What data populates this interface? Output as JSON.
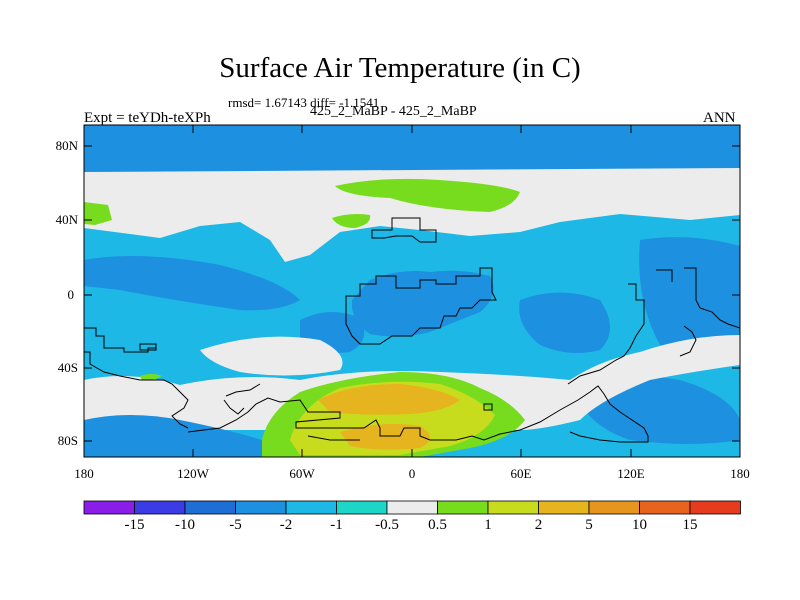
{
  "title": "Surface Air Temperature (in C)",
  "stats": "rmsd= 1.67143 diff= -1.1541",
  "left_label": "Expt = teYDh-teXPh",
  "subtitle": "425_2_MaBP - 425_2_MaBP",
  "right_label": "ANN",
  "y_ticks": [
    "80N",
    "40N",
    "0",
    "40S",
    "80S"
  ],
  "x_ticks": [
    "180",
    "120W",
    "60W",
    "0",
    "60E",
    "120E",
    "180"
  ],
  "colorbar": {
    "labels": [
      "-15",
      "-10",
      "-5",
      "-2",
      "-1",
      "-0.5",
      "0.5",
      "1",
      "2",
      "5",
      "10",
      "15"
    ],
    "colors": [
      "#8a1ee8",
      "#3c3ce6",
      "#1e6ed6",
      "#1e90e0",
      "#1eb8e6",
      "#1ed6c8",
      "#ececec",
      "#78dc1e",
      "#c8dc1e",
      "#e6b41e",
      "#e6961e",
      "#e6641e",
      "#e63c1e"
    ]
  },
  "chart_data": {
    "type": "heatmap",
    "title": "Surface Air Temperature (in C)",
    "subtitle": "425_2_MaBP - 425_2_MaBP",
    "stats": {
      "rmsd": 1.67143,
      "diff": -1.1541
    },
    "x_ticks": [
      "180",
      "120W",
      "60W",
      "0",
      "60E",
      "120E",
      "180"
    ],
    "y_ticks": [
      "80N",
      "40N",
      "0",
      "40S",
      "80S"
    ],
    "xlim": [
      -180,
      180
    ],
    "ylim": [
      -90,
      90
    ],
    "contour_levels": [
      -15,
      -10,
      -5,
      -2,
      -1,
      -0.5,
      0.5,
      1,
      2,
      5,
      10,
      15
    ],
    "colors": {
      "background_ocean": "#1eb8e6",
      "cool_band": "#1e90e0",
      "near_zero": "#ececec",
      "warm_1": "#78dc1e",
      "warm_2": "#c8dc1e",
      "warm_5": "#e6b41e"
    }
  }
}
